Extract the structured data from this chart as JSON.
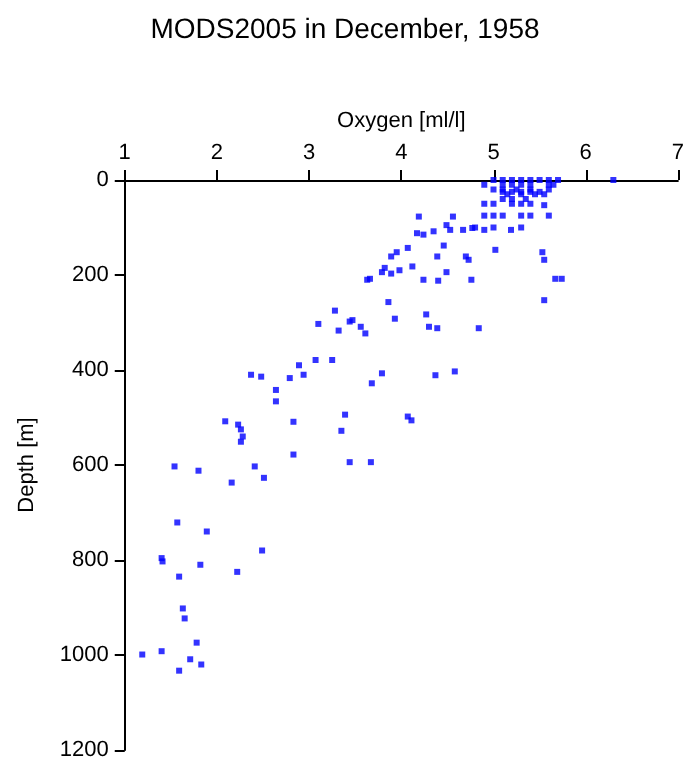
{
  "chart_data": {
    "type": "scatter",
    "title": "MODS2005 in December, 1958",
    "xlabel": "Oxygen [ml/l]",
    "ylabel": "Depth [m]",
    "xlim": [
      1,
      7
    ],
    "xticks": [
      1,
      2,
      3,
      4,
      5,
      6,
      7
    ],
    "ylim": [
      1200,
      0
    ],
    "yticks": [
      0,
      200,
      400,
      600,
      800,
      1000,
      1200
    ],
    "grid": false,
    "marker": "square",
    "series": [
      {
        "color": "#0000ff",
        "x": [
          5.0,
          5.1,
          5.2,
          5.3,
          5.4,
          5.5,
          5.6,
          5.7,
          6.3,
          4.9,
          5.1,
          5.2,
          5.3,
          5.4,
          5.6,
          5.65,
          5.0,
          5.1,
          5.25,
          5.4,
          5.6,
          5.1,
          5.2,
          5.3,
          5.4,
          5.5,
          5.15,
          5.3,
          5.45,
          5.55,
          5.1,
          5.2,
          5.35,
          4.9,
          5.0,
          5.2,
          5.3,
          5.4,
          5.55,
          4.9,
          5.0,
          5.1,
          5.3,
          5.4,
          5.6,
          4.8,
          5.0,
          5.19,
          5.3,
          4.19,
          4.17,
          4.24,
          4.35,
          4.49,
          4.53,
          4.46,
          4.56,
          4.67,
          4.77,
          4.7,
          4.73,
          4.76,
          4.39,
          4.4,
          4.49,
          4.24,
          4.07,
          4.12,
          3.95,
          3.89,
          3.82,
          3.79,
          3.89,
          3.98,
          3.66,
          3.63,
          5.02,
          4.9,
          5.53,
          5.55,
          5.67,
          5.74,
          5.55,
          3.86,
          3.93,
          4.27,
          4.3,
          4.39,
          4.84,
          3.28,
          3.1,
          3.32,
          3.44,
          3.47,
          3.56,
          3.61,
          3.07,
          3.25,
          2.89,
          2.94,
          2.79,
          2.48,
          2.37,
          3.79,
          4.37,
          4.58,
          2.64,
          2.64,
          3.68,
          2.09,
          2.23,
          2.26,
          2.28,
          2.26,
          2.83,
          3.39,
          3.35,
          4.07,
          4.11,
          2.83,
          3.44,
          3.67,
          1.54,
          1.8,
          2.41,
          2.51,
          2.16,
          1.57,
          1.89,
          1.4,
          1.41,
          1.82,
          2.49,
          1.59,
          2.22,
          1.63,
          1.65,
          1.78,
          1.71,
          1.19,
          1.4,
          1.59,
          1.83
        ],
        "values": [
          0,
          0,
          0,
          0,
          0,
          0,
          0,
          0,
          0,
          10,
          10,
          10,
          10,
          10,
          10,
          10,
          20,
          20,
          20,
          20,
          20,
          25,
          25,
          25,
          25,
          25,
          30,
          30,
          30,
          30,
          40,
          40,
          40,
          50,
          50,
          50,
          50,
          50,
          53,
          75,
          75,
          75,
          75,
          75,
          75,
          100,
          100,
          105,
          100,
          77,
          112,
          115,
          108,
          95,
          105,
          138,
          77,
          105,
          101,
          161,
          168,
          210,
          161,
          212,
          194,
          210,
          143,
          182,
          152,
          161,
          185,
          194,
          197,
          190,
          208,
          210,
          147,
          105,
          152,
          168,
          208,
          208,
          253,
          257,
          292,
          283,
          309,
          312,
          312,
          275,
          303,
          317,
          298,
          295,
          309,
          323,
          379,
          379,
          390,
          410,
          417,
          414,
          410,
          407,
          411,
          403,
          442,
          466,
          428,
          508,
          515,
          525,
          540,
          551,
          509,
          494,
          528,
          498,
          506,
          578,
          594,
          594,
          603,
          612,
          603,
          627,
          637,
          721,
          740,
          796,
          803,
          810,
          780,
          835,
          825,
          902,
          923,
          974,
          1009,
          999,
          992,
          1033,
          1020
        ]
      }
    ]
  }
}
